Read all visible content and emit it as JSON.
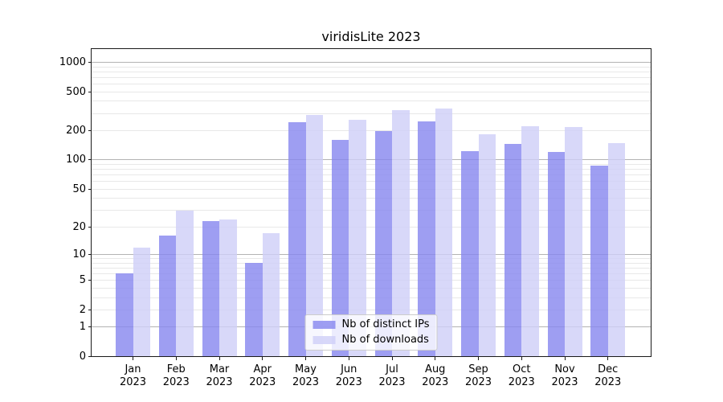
{
  "title": "viridisLite 2023",
  "legend": {
    "items": [
      {
        "label": "Nb of distinct IPs",
        "color": "rgba(134,134,239,0.8)"
      },
      {
        "label": "Nb of downloads",
        "color": "rgba(206,206,248,0.8)"
      }
    ]
  },
  "chart_data": {
    "type": "bar",
    "title": "viridisLite 2023",
    "categories": [
      "Jan 2023",
      "Feb 2023",
      "Mar 2023",
      "Apr 2023",
      "May 2023",
      "Jun 2023",
      "Jul 2023",
      "Aug 2023",
      "Sep 2023",
      "Oct 2023",
      "Nov 2023",
      "Dec 2023"
    ],
    "x_tick_line1": [
      "Jan",
      "Feb",
      "Mar",
      "Apr",
      "May",
      "Jun",
      "Jul",
      "Aug",
      "Sep",
      "Oct",
      "Nov",
      "Dec"
    ],
    "x_tick_line2": "2023",
    "series": [
      {
        "name": "Nb of distinct IPs",
        "color": "rgba(134,134,239,0.8)",
        "values": [
          6,
          16,
          23,
          8,
          243,
          162,
          197,
          249,
          123,
          145,
          120,
          87
        ]
      },
      {
        "name": "Nb of downloads",
        "color": "rgba(206,206,248,0.8)",
        "values": [
          12,
          30,
          24,
          17,
          290,
          257,
          326,
          339,
          183,
          223,
          218,
          149
        ]
      }
    ],
    "y_scale": "log10(1+x)",
    "ylim": [
      0,
      1380
    ],
    "y_tick_values": [
      0,
      1,
      2,
      5,
      10,
      20,
      50,
      100,
      200,
      500,
      1000
    ],
    "y_tick_labels": [
      "0",
      "1",
      "2",
      "5",
      "10",
      "20",
      "50",
      "100",
      "200",
      "500",
      "1000"
    ],
    "y_major_gridlines": [
      1,
      10,
      100,
      1000
    ],
    "y_minor_gridlines": [
      2,
      3,
      4,
      5,
      6,
      7,
      8,
      9,
      20,
      30,
      40,
      50,
      60,
      70,
      80,
      90,
      200,
      300,
      400,
      500,
      600,
      700,
      800,
      900
    ],
    "grid": true,
    "legend_position": "lower center",
    "colors": {
      "grid_major": "#b3b3b3",
      "grid_minor": "#e8e8e8",
      "spine": "#1a1a1a",
      "text": "#000000"
    }
  }
}
